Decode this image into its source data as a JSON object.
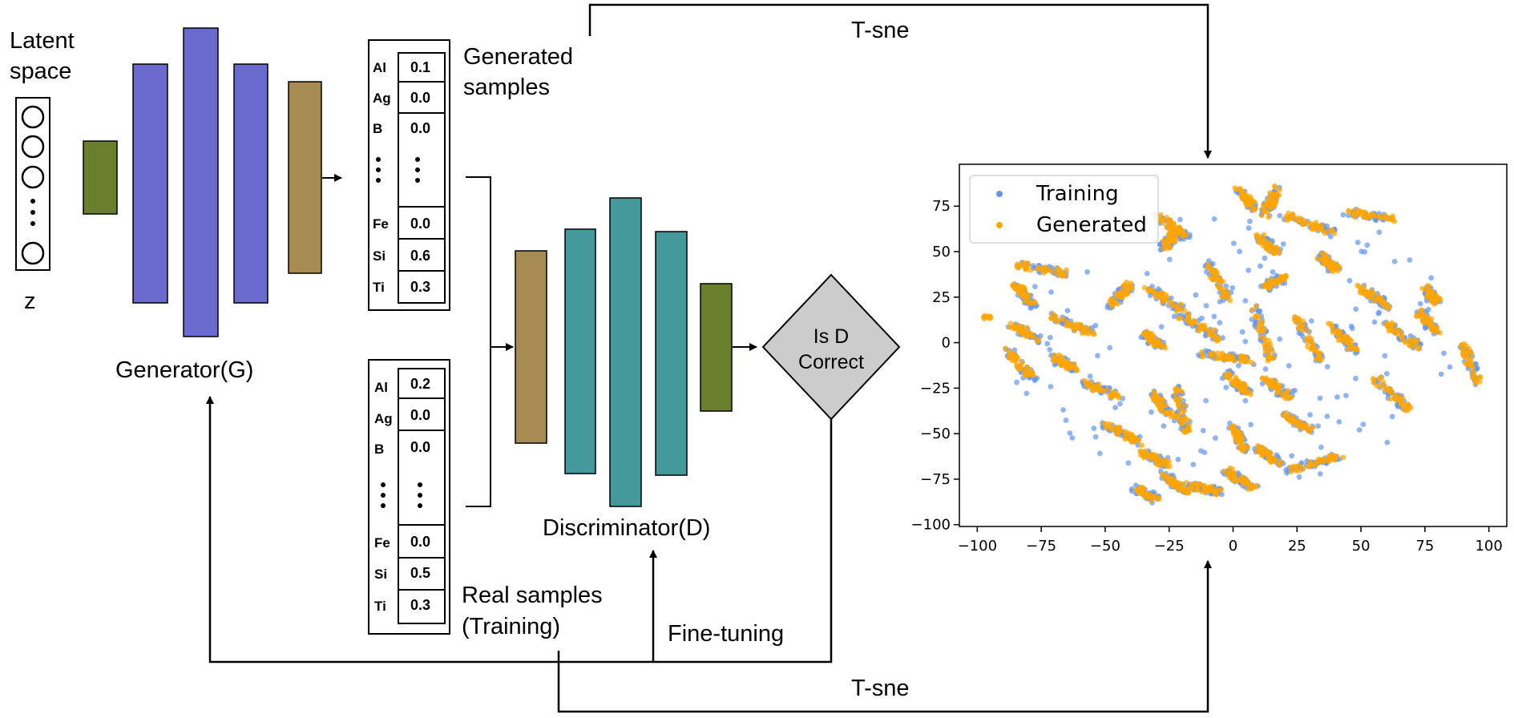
{
  "colors": {
    "generator_block": "#6a6acf",
    "olive_block": "#6a7f2e",
    "khaki_block": "#a68b52",
    "teal_block": "#44999b",
    "diamond_fill": "#cccccc",
    "training": "#6495ed",
    "generated": "#ffa500"
  },
  "labels": {
    "latent_space": [
      "Latent",
      "space"
    ],
    "z": "z",
    "generator": "Generator(G)",
    "discriminator": "Discriminator(D)",
    "generated_samples": [
      "Generated",
      "samples"
    ],
    "real_samples": [
      "Real samples",
      "(Training)"
    ],
    "decision": [
      "Is D",
      "Correct"
    ],
    "fine_tuning": "Fine-tuning",
    "tsne_top": "T-sne",
    "tsne_bottom": "T-sne"
  },
  "generated_table": [
    {
      "element": "Al",
      "value": "0.1"
    },
    {
      "element": "Ag",
      "value": "0.0"
    },
    {
      "element": "B",
      "value": "0.0"
    },
    {
      "element": "Fe",
      "value": "0.0"
    },
    {
      "element": "Si",
      "value": "0.6"
    },
    {
      "element": "Ti",
      "value": "0.3"
    }
  ],
  "real_table": [
    {
      "element": "Al",
      "value": "0.2"
    },
    {
      "element": "Ag",
      "value": "0.0"
    },
    {
      "element": "B",
      "value": "0.0"
    },
    {
      "element": "Fe",
      "value": "0.0"
    },
    {
      "element": "Si",
      "value": "0.5"
    },
    {
      "element": "Ti",
      "value": "0.3"
    }
  ],
  "chart_data": {
    "type": "scatter",
    "title": "",
    "xlabel": "",
    "ylabel": "",
    "xlim": [
      -107,
      107
    ],
    "ylim": [
      -101,
      98
    ],
    "xticks": [
      -100,
      -75,
      -50,
      -25,
      0,
      25,
      50,
      75,
      100
    ],
    "yticks": [
      -100,
      -75,
      -50,
      -25,
      0,
      25,
      50,
      75
    ],
    "legend": "top-left",
    "series": [
      {
        "name": "Training",
        "color": "#6495ed"
      },
      {
        "name": "Generated",
        "color": "#ffa500"
      }
    ],
    "clusters": [
      {
        "x": [
          2,
          8
        ],
        "y": [
          84,
          74
        ]
      },
      {
        "x": [
          12,
          18
        ],
        "y": [
          70,
          86
        ]
      },
      {
        "x": [
          -30,
          -18
        ],
        "y": [
          70,
          58
        ]
      },
      {
        "x": [
          -27,
          -22
        ],
        "y": [
          52,
          62
        ]
      },
      {
        "x": [
          -10,
          -2
        ],
        "y": [
          44,
          24
        ]
      },
      {
        "x": [
          10,
          17
        ],
        "y": [
          58,
          50
        ]
      },
      {
        "x": [
          20,
          40
        ],
        "y": [
          70,
          60
        ]
      },
      {
        "x": [
          45,
          62
        ],
        "y": [
          72,
          68
        ]
      },
      {
        "x": [
          34,
          40
        ],
        "y": [
          48,
          40
        ]
      },
      {
        "x": [
          -84,
          -65
        ],
        "y": [
          43,
          38
        ]
      },
      {
        "x": [
          -85,
          -78
        ],
        "y": [
          32,
          20
        ]
      },
      {
        "x": [
          -48,
          -40
        ],
        "y": [
          20,
          32
        ]
      },
      {
        "x": [
          -33,
          -20
        ],
        "y": [
          30,
          18
        ]
      },
      {
        "x": [
          -72,
          -55
        ],
        "y": [
          15,
          5
        ]
      },
      {
        "x": [
          -86,
          -75
        ],
        "y": [
          10,
          0
        ]
      },
      {
        "x": [
          -88,
          -78
        ],
        "y": [
          -4,
          -20
        ]
      },
      {
        "x": [
          -70,
          -62
        ],
        "y": [
          -8,
          -14
        ]
      },
      {
        "x": [
          -58,
          -44
        ],
        "y": [
          -22,
          -30
        ]
      },
      {
        "x": [
          -35,
          -28
        ],
        "y": [
          5,
          -2
        ]
      },
      {
        "x": [
          -20,
          -5
        ],
        "y": [
          15,
          2
        ]
      },
      {
        "x": [
          -12,
          8
        ],
        "y": [
          -6,
          -10
        ]
      },
      {
        "x": [
          8,
          15
        ],
        "y": [
          20,
          -10
        ]
      },
      {
        "x": [
          12,
          20
        ],
        "y": [
          30,
          36
        ]
      },
      {
        "x": [
          24,
          34
        ],
        "y": [
          15,
          -10
        ]
      },
      {
        "x": [
          38,
          48
        ],
        "y": [
          10,
          -5
        ]
      },
      {
        "x": [
          50,
          60
        ],
        "y": [
          30,
          20
        ]
      },
      {
        "x": [
          60,
          72
        ],
        "y": [
          10,
          -2
        ]
      },
      {
        "x": [
          72,
          80
        ],
        "y": [
          18,
          5
        ]
      },
      {
        "x": [
          75,
          80
        ],
        "y": [
          30,
          22
        ]
      },
      {
        "x": [
          56,
          68
        ],
        "y": [
          -20,
          -36
        ]
      },
      {
        "x": [
          90,
          96
        ],
        "y": [
          -2,
          -22
        ]
      },
      {
        "x": [
          -32,
          -22
        ],
        "y": [
          -28,
          -42
        ]
      },
      {
        "x": [
          -22,
          -18
        ],
        "y": [
          -25,
          -50
        ]
      },
      {
        "x": [
          -3,
          6
        ],
        "y": [
          -16,
          -28
        ]
      },
      {
        "x": [
          12,
          22
        ],
        "y": [
          -20,
          -30
        ]
      },
      {
        "x": [
          20,
          30
        ],
        "y": [
          -40,
          -48
        ]
      },
      {
        "x": [
          -50,
          -36
        ],
        "y": [
          -45,
          -55
        ]
      },
      {
        "x": [
          -35,
          -25
        ],
        "y": [
          -60,
          -68
        ]
      },
      {
        "x": [
          -38,
          -30
        ],
        "y": [
          -80,
          -86
        ]
      },
      {
        "x": [
          -18,
          -5
        ],
        "y": [
          -78,
          -82
        ]
      },
      {
        "x": [
          -3,
          8
        ],
        "y": [
          -70,
          -80
        ]
      },
      {
        "x": [
          10,
          18
        ],
        "y": [
          -58,
          -66
        ]
      },
      {
        "x": [
          22,
          42
        ],
        "y": [
          -70,
          -62
        ]
      },
      {
        "x": [
          -28,
          -18
        ],
        "y": [
          -72,
          -82
        ]
      },
      {
        "x": [
          0,
          5
        ],
        "y": [
          -45,
          -60
        ]
      }
    ]
  }
}
